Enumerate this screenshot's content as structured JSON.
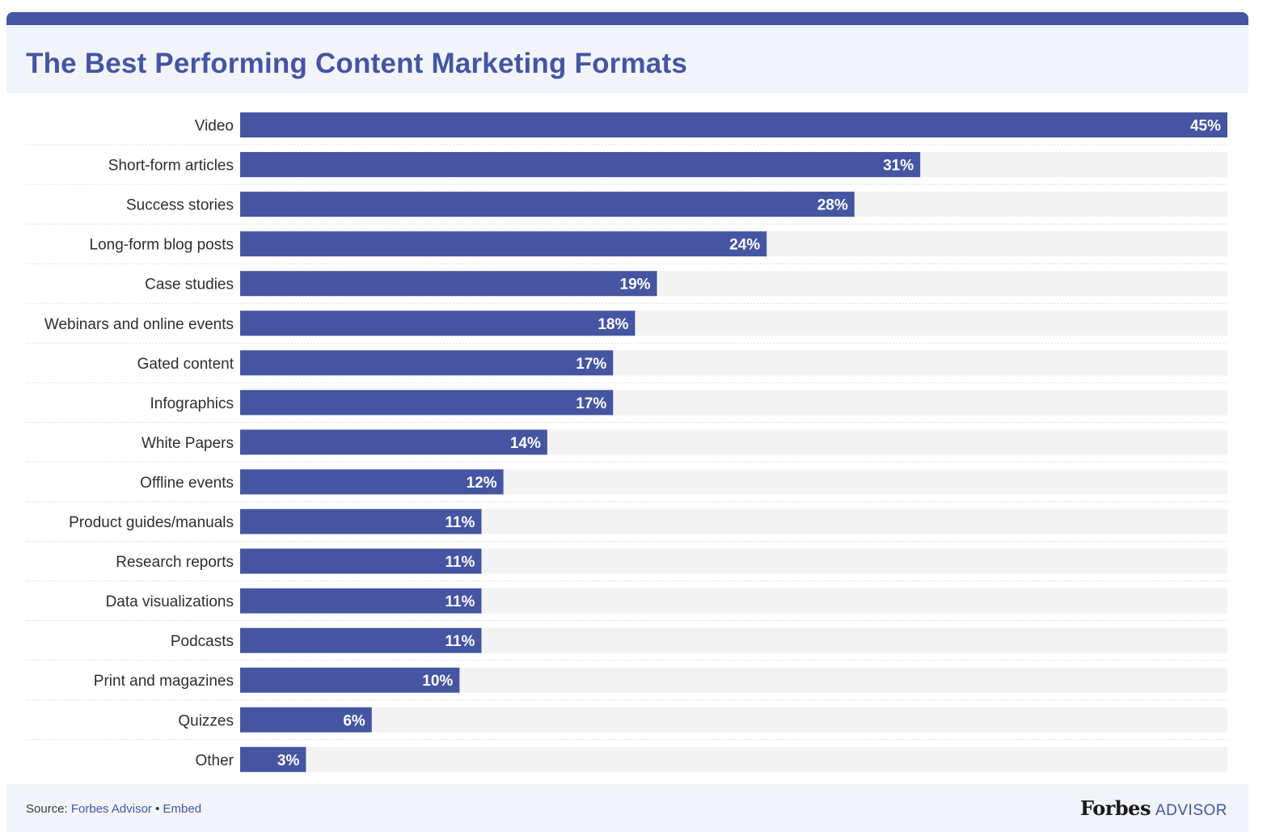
{
  "header": {
    "title": "The Best Performing Content Marketing Formats"
  },
  "chart_data": {
    "type": "bar",
    "orientation": "horizontal",
    "title": "The Best Performing Content Marketing Formats",
    "xlabel": "",
    "ylabel": "",
    "xlim": [
      0,
      45
    ],
    "unit": "%",
    "grid": false,
    "categories": [
      "Video",
      "Short-form articles",
      "Success stories",
      "Long-form blog posts",
      "Case studies",
      "Webinars and online events",
      "Gated content",
      "Infographics",
      "White Papers",
      "Offline events",
      "Product guides/manuals",
      "Research reports",
      "Data visualizations",
      "Podcasts",
      "Print and magazines",
      "Quizzes",
      "Other"
    ],
    "values": [
      45,
      31,
      28,
      24,
      19,
      18,
      17,
      17,
      14,
      12,
      11,
      11,
      11,
      11,
      10,
      6,
      3
    ],
    "value_labels": [
      "45%",
      "31%",
      "28%",
      "24%",
      "19%",
      "18%",
      "17%",
      "17%",
      "14%",
      "12%",
      "11%",
      "11%",
      "11%",
      "11%",
      "10%",
      "6%",
      "3%"
    ]
  },
  "footer": {
    "source_prefix": "Source: ",
    "source_link": "Forbes Advisor",
    "separator": " • ",
    "embed_link": "Embed",
    "logo_forbes": "Forbes",
    "logo_advisor": "ADVISOR"
  },
  "colors": {
    "accent": "#4555a2",
    "bar": "#4555a2",
    "track": "#f3f3f3",
    "header_bg": "#f1f4f9",
    "divider": "#dddddd"
  }
}
